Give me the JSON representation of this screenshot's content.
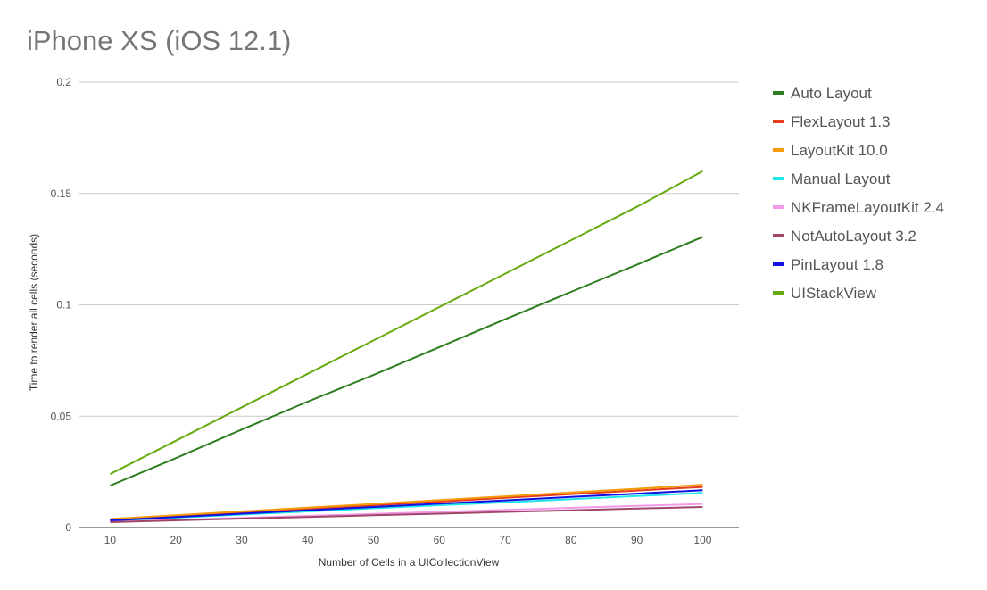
{
  "chart_data": {
    "type": "line",
    "title": "iPhone XS (iOS 12.1)",
    "xlabel": "Number of Cells in a UICollectionView",
    "ylabel": "Time to  render  all cells (seconds)",
    "x": [
      10,
      20,
      30,
      40,
      50,
      60,
      70,
      80,
      90,
      100
    ],
    "xlim": [
      5.2,
      105.5
    ],
    "ylim": [
      0,
      0.2
    ],
    "yticks": [
      0,
      0.05,
      0.1,
      0.15,
      0.2
    ],
    "ytick_labels": [
      "0",
      "0.05",
      "0.1",
      "0.15",
      "0.2"
    ],
    "xtick_labels": [
      "10",
      "20",
      "30",
      "40",
      "50",
      "60",
      "70",
      "80",
      "90",
      "100"
    ],
    "grid": true,
    "legend_position": "right",
    "series": [
      {
        "name": "Auto Layout",
        "color": "#2e7d1f",
        "values": [
          0.0188,
          0.0312,
          0.044,
          0.0565,
          0.0685,
          0.081,
          0.0935,
          0.1058,
          0.118,
          0.1305
        ]
      },
      {
        "name": "FlexLayout 1.3",
        "color": "#e53c1e",
        "values": [
          0.0034,
          0.005,
          0.0067,
          0.0083,
          0.01,
          0.0116,
          0.0133,
          0.015,
          0.0166,
          0.0182
        ]
      },
      {
        "name": "LayoutKit 10.0",
        "color": "#f59a0a",
        "values": [
          0.0038,
          0.0055,
          0.0072,
          0.0089,
          0.0106,
          0.0123,
          0.014,
          0.0157,
          0.0174,
          0.0192
        ]
      },
      {
        "name": "Manual Layout",
        "color": "#22e5e8",
        "values": [
          0.003,
          0.0044,
          0.0058,
          0.0072,
          0.0086,
          0.01,
          0.0113,
          0.0127,
          0.0141,
          0.0155
        ]
      },
      {
        "name": "NKFrameLayoutKit 2.4",
        "color": "#f29ae8",
        "values": [
          0.0025,
          0.0034,
          0.0043,
          0.0052,
          0.0061,
          0.007,
          0.0079,
          0.0088,
          0.0097,
          0.0106
        ]
      },
      {
        "name": "NotAutoLayout 3.2",
        "color": "#a0466a",
        "values": [
          0.0024,
          0.0032,
          0.004,
          0.0047,
          0.0055,
          0.0062,
          0.007,
          0.0077,
          0.0085,
          0.0092
        ]
      },
      {
        "name": "PinLayout 1.8",
        "color": "#1010e0",
        "values": [
          0.0032,
          0.0047,
          0.0062,
          0.0077,
          0.0092,
          0.0107,
          0.0122,
          0.0137,
          0.0152,
          0.0167
        ]
      },
      {
        "name": "UIStackView",
        "color": "#66aa10",
        "values": [
          0.024,
          0.039,
          0.054,
          0.069,
          0.084,
          0.099,
          0.114,
          0.129,
          0.144,
          0.16
        ]
      }
    ]
  }
}
